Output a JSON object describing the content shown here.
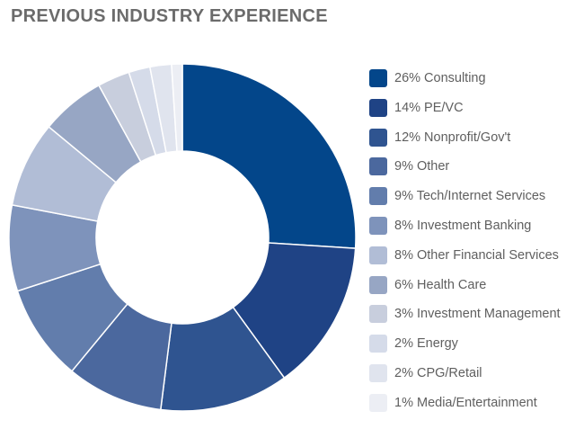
{
  "chart_data": {
    "type": "pie",
    "donut": true,
    "title": "PREVIOUS INDUSTRY EXPERIENCE",
    "legend_position": "right",
    "categories": [
      "Consulting",
      "PE/VC",
      "Nonprofit/Gov't",
      "Other",
      "Tech/Internet Services",
      "Investment Banking",
      "Other Financial Services",
      "Health Care",
      "Investment Management",
      "Energy",
      "CPG/Retail",
      "Media/Entertainment"
    ],
    "values": [
      26,
      14,
      12,
      9,
      9,
      8,
      8,
      6,
      3,
      2,
      2,
      1
    ],
    "value_unit": "%",
    "legend_labels": [
      "26% Consulting",
      "14% PE/VC",
      "12% Nonprofit/Gov't",
      "9% Other",
      "9% Tech/Internet Services",
      "8% Investment Banking",
      "8% Other Financial Services",
      "6% Health Care",
      "3% Investment Management",
      "2% Energy",
      "2% CPG/Retail",
      "1% Media/Entertainment"
    ],
    "colors": [
      "#03468a",
      "#1f4385",
      "#2f5490",
      "#4b689e",
      "#627dac",
      "#7e93bb",
      "#b1bdd6",
      "#97a6c4",
      "#c8cedd",
      "#d5dbe9",
      "#e0e4ee",
      "#eceef4"
    ]
  }
}
